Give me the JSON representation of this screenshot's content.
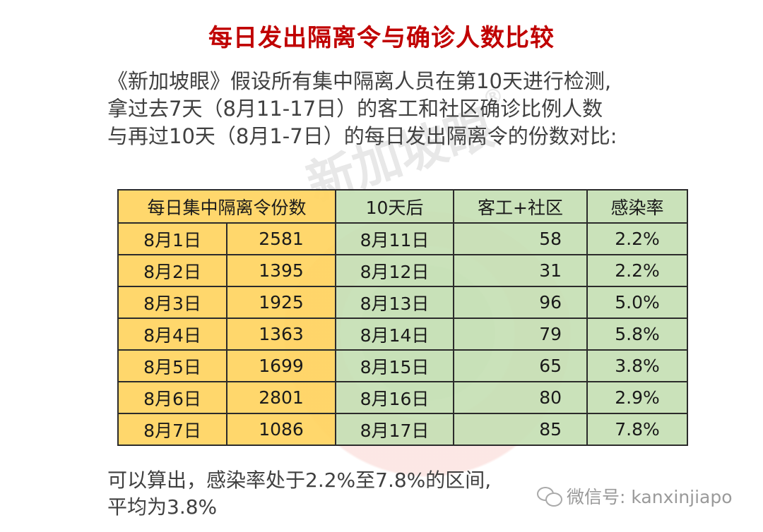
{
  "title": "每日发出隔离令与确诊人数比较",
  "intro": {
    "line1": "《新加坡眼》假设所有集中隔离人员在第10天进行检测,",
    "line2": "拿过去7天（8月11-17日）的客工和社区确诊比例人数",
    "line3": "与再过10天（8月1-7日）的每日发出隔离令的份数对比:"
  },
  "watermark": {
    "text": "新加坡眼",
    "reg": "®"
  },
  "table": {
    "headers": [
      "每日集中隔离令份数",
      "10天后",
      "客工+社区",
      "感染率"
    ],
    "rows": [
      {
        "date": "8月1日",
        "orders": "2581",
        "after": "8月11日",
        "cases": "58",
        "rate": "2.2%"
      },
      {
        "date": "8月2日",
        "orders": "1395",
        "after": "8月12日",
        "cases": "31",
        "rate": "2.2%"
      },
      {
        "date": "8月3日",
        "orders": "1925",
        "after": "8月13日",
        "cases": "96",
        "rate": "5.0%"
      },
      {
        "date": "8月4日",
        "orders": "1363",
        "after": "8月14日",
        "cases": "79",
        "rate": "5.8%"
      },
      {
        "date": "8月5日",
        "orders": "1699",
        "after": "8月15日",
        "cases": "65",
        "rate": "3.8%"
      },
      {
        "date": "8月6日",
        "orders": "2801",
        "after": "8月16日",
        "cases": "80",
        "rate": "2.9%"
      },
      {
        "date": "8月7日",
        "orders": "1086",
        "after": "8月17日",
        "cases": "85",
        "rate": "7.8%"
      }
    ]
  },
  "summary": {
    "line1": "可以算出，感染率处于2.2%至7.8%的区间,",
    "line2": "平均为3.8%"
  },
  "wechat": {
    "label": "微信号: kanxinjiapo"
  },
  "colors": {
    "title": "#c00000",
    "yellow": "#ffd460",
    "green": "#c6e0b4",
    "text": "#404040"
  }
}
